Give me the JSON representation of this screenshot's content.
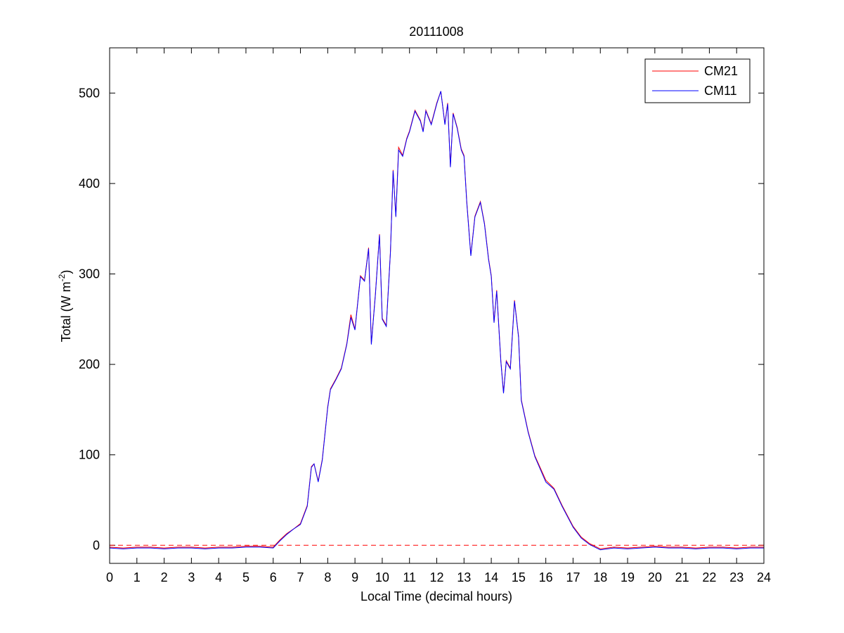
{
  "chart_data": {
    "type": "line",
    "title": "20111008",
    "xlabel": "Local Time (decimal hours)",
    "ylabel": [
      "Total (W m",
      "-2",
      ")"
    ],
    "x": [
      0,
      0.5,
      1,
      1.5,
      2,
      2.5,
      3,
      3.5,
      4,
      4.5,
      5,
      5.5,
      6,
      6.25,
      6.5,
      6.75,
      7,
      7.25,
      7.4,
      7.5,
      7.65,
      7.8,
      8,
      8.1,
      8.3,
      8.5,
      8.7,
      8.85,
      9,
      9.2,
      9.35,
      9.5,
      9.6,
      9.75,
      9.9,
      10,
      10.15,
      10.3,
      10.4,
      10.5,
      10.6,
      10.75,
      10.9,
      11,
      11.2,
      11.4,
      11.5,
      11.6,
      11.8,
      12,
      12.15,
      12.3,
      12.4,
      12.5,
      12.6,
      12.75,
      12.9,
      13,
      13.1,
      13.25,
      13.4,
      13.6,
      13.75,
      13.9,
      14,
      14.1,
      14.2,
      14.35,
      14.45,
      14.55,
      14.7,
      14.85,
      15,
      15.1,
      15.35,
      15.6,
      16,
      16.3,
      16.6,
      17,
      17.3,
      17.6,
      17.8,
      18,
      18.5,
      19,
      19.5,
      20,
      20.5,
      21,
      21.5,
      22,
      22.5,
      23,
      23.5,
      24
    ],
    "series": [
      {
        "name": "CM21",
        "color": "#ff0000",
        "values": [
          -2,
          -3,
          -2,
          -2,
          -3,
          -2,
          -2,
          -3,
          -2,
          -2,
          -1,
          -1,
          -2,
          6,
          13,
          18,
          24,
          44,
          87,
          90,
          71,
          95,
          153,
          173,
          184,
          196,
          223,
          255,
          239,
          298,
          293,
          329,
          223,
          278,
          344,
          251,
          243,
          325,
          415,
          364,
          440,
          431,
          450,
          458,
          481,
          470,
          458,
          481,
          466,
          489,
          502,
          466,
          489,
          419,
          478,
          462,
          438,
          431,
          380,
          321,
          364,
          380,
          356,
          317,
          298,
          247,
          282,
          204,
          169,
          204,
          196,
          271,
          231,
          161,
          126,
          99,
          72,
          63,
          44,
          21,
          9,
          2,
          -1,
          -4,
          -2,
          -3,
          -2,
          -1,
          -2,
          -2,
          -3,
          -2,
          -2,
          -3,
          -2,
          -2
        ]
      },
      {
        "name": "CM11",
        "color": "#0000ff",
        "values": [
          -3,
          -4,
          -3,
          -3,
          -4,
          -3,
          -3,
          -4,
          -3,
          -3,
          -2,
          -2,
          -3,
          5,
          12,
          18,
          23,
          43,
          86,
          90,
          70,
          94,
          152,
          172,
          183,
          195,
          222,
          252,
          238,
          297,
          292,
          328,
          222,
          277,
          343,
          250,
          242,
          324,
          414,
          363,
          437,
          430,
          449,
          457,
          480,
          469,
          457,
          480,
          465,
          488,
          502,
          465,
          488,
          418,
          477,
          461,
          437,
          430,
          379,
          320,
          363,
          379,
          355,
          316,
          297,
          246,
          281,
          203,
          168,
          203,
          195,
          270,
          230,
          160,
          125,
          98,
          70,
          62,
          43,
          20,
          8,
          1,
          -2,
          -5,
          -3,
          -4,
          -3,
          -2,
          -3,
          -3,
          -4,
          -3,
          -3,
          -4,
          -3,
          -3
        ]
      }
    ],
    "hline": {
      "value": 0,
      "color": "#ff0000"
    },
    "xlim": [
      0,
      24
    ],
    "xticks": [
      0,
      1,
      2,
      3,
      4,
      5,
      6,
      7,
      8,
      9,
      10,
      11,
      12,
      13,
      14,
      15,
      16,
      17,
      18,
      19,
      20,
      21,
      22,
      23,
      24
    ],
    "ylim": [
      -20,
      550
    ],
    "yticks": [
      0,
      100,
      200,
      300,
      400,
      500
    ],
    "legend": "northeast",
    "grid": false
  }
}
